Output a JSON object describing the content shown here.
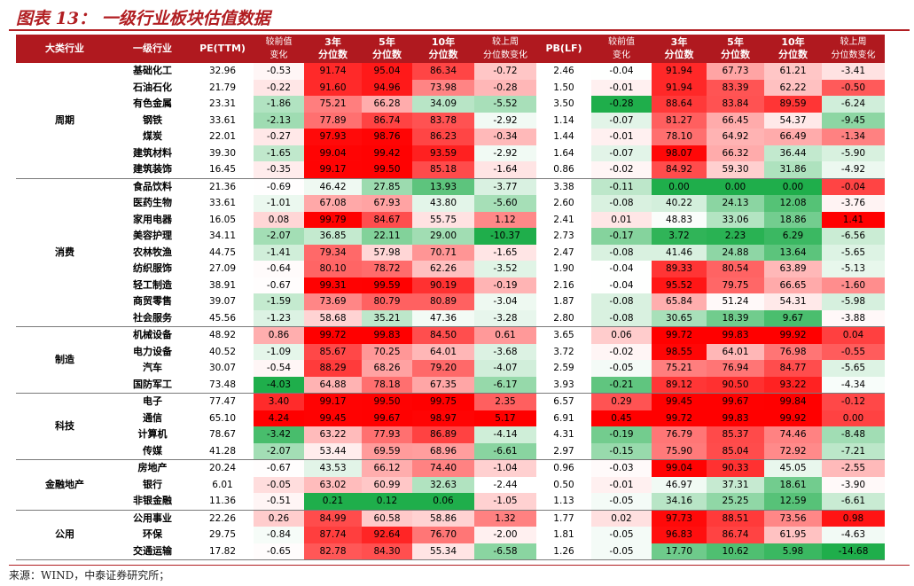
{
  "figure": {
    "title": "图表 13：  一级行业板块估值数据",
    "source": "来源：WIND，中泰证券研究所；"
  },
  "colors": {
    "header_bg": "#b0191f",
    "high": "#ff0000",
    "low": "#1fae4b",
    "neutral": "#ffffff"
  },
  "table": {
    "headers": {
      "group": "大类行业",
      "industry": "一级行业",
      "pe": "PE(TTM)",
      "pe_chg": [
        "较前值",
        "变化"
      ],
      "pe_3y": [
        "3年",
        "分位数"
      ],
      "pe_5y": [
        "5年",
        "分位数"
      ],
      "pe_10y": [
        "10年",
        "分位数"
      ],
      "pe_wk": [
        "较上周",
        "分位数变化"
      ],
      "pb": "PB(LF)",
      "pb_chg": [
        "较前值",
        "变化"
      ],
      "pb_3y": [
        "3年",
        "分位数"
      ],
      "pb_5y": [
        "5年",
        "分位数"
      ],
      "pb_10y": [
        "10年",
        "分位数"
      ],
      "pb_wk": [
        "较上周",
        "分位数变化"
      ]
    },
    "groups": [
      {
        "name": "周期",
        "rows": [
          [
            "基础化工",
            "32.96",
            "-0.53",
            "91.74",
            "95.04",
            "86.34",
            "-0.72",
            "2.46",
            "-0.04",
            "91.94",
            "67.73",
            "61.21",
            "-3.41"
          ],
          [
            "石油石化",
            "21.79",
            "-0.22",
            "91.60",
            "94.96",
            "73.98",
            "-0.28",
            "1.50",
            "-0.01",
            "91.94",
            "83.39",
            "62.22",
            "-0.50"
          ],
          [
            "有色金属",
            "23.31",
            "-1.86",
            "75.21",
            "66.28",
            "34.09",
            "-5.52",
            "3.50",
            "-0.28",
            "88.64",
            "83.84",
            "89.59",
            "-6.24"
          ],
          [
            "钢铁",
            "33.61",
            "-2.13",
            "77.89",
            "86.74",
            "83.78",
            "-2.92",
            "1.14",
            "-0.07",
            "81.27",
            "66.45",
            "54.37",
            "-9.45"
          ],
          [
            "煤炭",
            "22.01",
            "-0.27",
            "97.93",
            "98.76",
            "86.23",
            "-0.34",
            "1.44",
            "-0.01",
            "78.10",
            "64.92",
            "66.49",
            "-1.34"
          ],
          [
            "建筑材料",
            "39.30",
            "-1.65",
            "99.04",
            "99.42",
            "93.59",
            "-2.92",
            "1.64",
            "-0.07",
            "98.07",
            "66.32",
            "36.44",
            "-5.90"
          ],
          [
            "建筑装饰",
            "16.45",
            "-0.35",
            "99.17",
            "99.50",
            "85.18",
            "-1.64",
            "0.86",
            "-0.02",
            "84.92",
            "59.30",
            "31.86",
            "-4.92"
          ]
        ]
      },
      {
        "name": "消费",
        "rows": [
          [
            "食品饮料",
            "21.36",
            "-0.69",
            "46.42",
            "27.85",
            "13.93",
            "-3.77",
            "3.38",
            "-0.11",
            "0.00",
            "0.00",
            "0.00",
            "-0.04"
          ],
          [
            "医药生物",
            "33.61",
            "-1.01",
            "67.08",
            "67.93",
            "43.80",
            "-5.60",
            "2.60",
            "-0.08",
            "40.22",
            "24.13",
            "12.08",
            "-3.76"
          ],
          [
            "家用电器",
            "16.05",
            "0.08",
            "99.79",
            "84.67",
            "55.75",
            "1.12",
            "2.41",
            "0.01",
            "48.83",
            "33.06",
            "18.86",
            "1.41"
          ],
          [
            "美容护理",
            "34.11",
            "-2.07",
            "36.85",
            "22.11",
            "29.00",
            "-10.37",
            "2.73",
            "-0.17",
            "3.72",
            "2.23",
            "6.29",
            "-6.56"
          ],
          [
            "农林牧渔",
            "44.75",
            "-1.41",
            "79.34",
            "57.98",
            "70.71",
            "-1.65",
            "2.47",
            "-0.08",
            "41.46",
            "24.88",
            "13.64",
            "-5.65"
          ],
          [
            "纺织服饰",
            "27.09",
            "-0.64",
            "80.10",
            "78.72",
            "62.26",
            "-3.52",
            "1.90",
            "-0.04",
            "89.33",
            "80.54",
            "63.89",
            "-5.13"
          ],
          [
            "轻工制造",
            "38.91",
            "-0.67",
            "99.31",
            "99.59",
            "90.19",
            "-0.19",
            "2.16",
            "-0.04",
            "95.52",
            "79.75",
            "66.65",
            "-1.60"
          ],
          [
            "商贸零售",
            "39.07",
            "-1.59",
            "73.69",
            "80.79",
            "80.89",
            "-3.04",
            "1.87",
            "-0.08",
            "65.84",
            "51.24",
            "54.31",
            "-5.98"
          ],
          [
            "社会服务",
            "45.56",
            "-1.23",
            "58.68",
            "35.21",
            "47.36",
            "-3.28",
            "2.80",
            "-0.08",
            "30.65",
            "18.39",
            "9.67",
            "-3.88"
          ]
        ]
      },
      {
        "name": "制造",
        "rows": [
          [
            "机械设备",
            "48.92",
            "0.86",
            "99.72",
            "99.83",
            "84.50",
            "0.61",
            "3.65",
            "0.06",
            "99.72",
            "99.83",
            "99.92",
            "0.04"
          ],
          [
            "电力设备",
            "40.52",
            "-1.09",
            "85.67",
            "70.25",
            "64.01",
            "-3.68",
            "3.72",
            "-0.02",
            "98.55",
            "64.01",
            "76.98",
            "-0.55"
          ],
          [
            "汽车",
            "30.07",
            "-0.54",
            "88.29",
            "68.26",
            "79.20",
            "-4.07",
            "2.59",
            "-0.05",
            "75.21",
            "76.94",
            "84.77",
            "-5.65"
          ],
          [
            "国防军工",
            "73.48",
            "-4.03",
            "64.88",
            "78.18",
            "67.35",
            "-6.17",
            "3.93",
            "-0.21",
            "89.12",
            "90.50",
            "93.22",
            "-4.34"
          ]
        ]
      },
      {
        "name": "科技",
        "rows": [
          [
            "电子",
            "77.47",
            "3.40",
            "99.17",
            "99.50",
            "99.75",
            "2.35",
            "6.57",
            "0.29",
            "99.45",
            "99.67",
            "99.84",
            "-0.12"
          ],
          [
            "通信",
            "65.10",
            "4.24",
            "99.45",
            "99.67",
            "98.97",
            "5.17",
            "6.91",
            "0.45",
            "99.72",
            "99.83",
            "99.92",
            "0.00"
          ],
          [
            "计算机",
            "78.67",
            "-3.42",
            "63.22",
            "77.93",
            "86.89",
            "-4.14",
            "4.31",
            "-0.19",
            "76.79",
            "85.37",
            "74.46",
            "-8.48"
          ],
          [
            "传媒",
            "41.28",
            "-2.07",
            "53.44",
            "69.59",
            "68.96",
            "-6.61",
            "2.97",
            "-0.15",
            "75.90",
            "85.04",
            "72.92",
            "-7.21"
          ]
        ]
      },
      {
        "name": "金融地产",
        "rows": [
          [
            "房地产",
            "20.24",
            "-0.67",
            "43.53",
            "66.12",
            "74.40",
            "-1.04",
            "0.96",
            "-0.03",
            "99.04",
            "90.33",
            "45.05",
            "-2.55"
          ],
          [
            "银行",
            "6.01",
            "-0.05",
            "63.02",
            "60.99",
            "32.63",
            "-2.44",
            "0.50",
            "-0.01",
            "46.97",
            "37.31",
            "18.61",
            "-3.90"
          ],
          [
            "非银金融",
            "11.36",
            "-0.51",
            "0.21",
            "0.12",
            "0.06",
            "-1.05",
            "1.13",
            "-0.05",
            "34.16",
            "25.25",
            "12.59",
            "-6.61"
          ]
        ]
      },
      {
        "name": "公用",
        "rows": [
          [
            "公用事业",
            "22.26",
            "0.26",
            "84.99",
            "60.58",
            "58.86",
            "1.32",
            "1.77",
            "0.02",
            "97.73",
            "88.51",
            "73.56",
            "0.98"
          ],
          [
            "环保",
            "29.75",
            "-0.84",
            "87.74",
            "92.64",
            "76.70",
            "-2.00",
            "1.81",
            "-0.05",
            "96.83",
            "86.74",
            "61.95",
            "-4.63"
          ],
          [
            "交通运输",
            "17.82",
            "-0.65",
            "82.78",
            "84.30",
            "55.34",
            "-6.58",
            "1.26",
            "-0.05",
            "17.70",
            "10.62",
            "5.98",
            "-14.68"
          ]
        ]
      }
    ]
  }
}
